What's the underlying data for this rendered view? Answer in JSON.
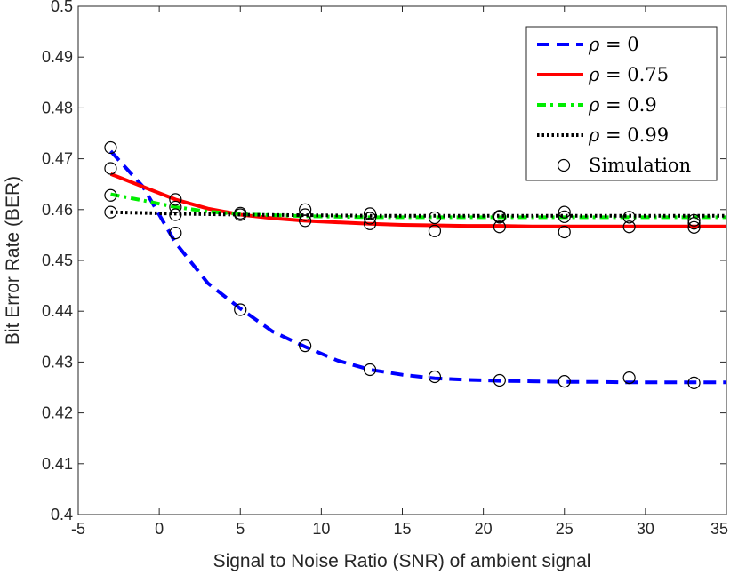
{
  "chart_data": {
    "type": "line",
    "title": "",
    "xlabel": "Signal to Noise Ratio (SNR) of ambient signal",
    "ylabel": "Bit Error Rate (BER)",
    "xlim": [
      -5,
      35
    ],
    "ylim": [
      0.4,
      0.5
    ],
    "xticks": [
      -5,
      0,
      5,
      10,
      15,
      20,
      25,
      30,
      35
    ],
    "xtick_labels": [
      "-5",
      "0",
      "5",
      "10",
      "15",
      "20",
      "25",
      "30",
      "35"
    ],
    "yticks": [
      0.4,
      0.41,
      0.42,
      0.43,
      0.44,
      0.45,
      0.46,
      0.47,
      0.48,
      0.49,
      0.5
    ],
    "ytick_labels": [
      "0.4",
      "0.41",
      "0.42",
      "0.43",
      "0.44",
      "0.45",
      "0.46",
      "0.47",
      "0.48",
      "0.49",
      "0.5"
    ],
    "legend_position": "top-right",
    "series": [
      {
        "name": "ρ = 0",
        "symbol": "ρ",
        "eq": " = 0",
        "color": "#0000ff",
        "style": "dashed",
        "x": [
          -3,
          -1,
          1,
          3,
          5,
          7,
          9,
          11,
          13,
          15,
          17,
          19,
          21,
          23,
          25,
          27,
          29,
          31,
          33,
          35
        ],
        "y": [
          0.4715,
          0.4645,
          0.4535,
          0.4455,
          0.4405,
          0.436,
          0.433,
          0.4303,
          0.4285,
          0.4275,
          0.4268,
          0.4265,
          0.4263,
          0.4262,
          0.4261,
          0.4261,
          0.426,
          0.426,
          0.426,
          0.426
        ]
      },
      {
        "name": "ρ = 0.75",
        "symbol": "ρ",
        "eq": " = 0.75",
        "color": "#ff0000",
        "style": "solid",
        "x": [
          -3,
          -1,
          1,
          3,
          5,
          7,
          9,
          11,
          13,
          15,
          17,
          19,
          21,
          23,
          25,
          27,
          29,
          31,
          33,
          35
        ],
        "y": [
          0.467,
          0.4645,
          0.462,
          0.4602,
          0.459,
          0.4583,
          0.4578,
          0.4575,
          0.4572,
          0.457,
          0.4569,
          0.4568,
          0.4568,
          0.4567,
          0.4567,
          0.4567,
          0.4567,
          0.4567,
          0.4567,
          0.4567
        ]
      },
      {
        "name": "ρ = 0.9",
        "symbol": "ρ",
        "eq": " = 0.9",
        "color": "#00ee00",
        "style": "dashdot",
        "x": [
          -3,
          -1,
          1,
          3,
          5,
          7,
          9,
          11,
          13,
          15,
          17,
          19,
          21,
          23,
          25,
          27,
          29,
          31,
          33,
          35
        ],
        "y": [
          0.463,
          0.4618,
          0.4605,
          0.4596,
          0.4591,
          0.4589,
          0.4587,
          0.4586,
          0.4585,
          0.4585,
          0.4585,
          0.4585,
          0.4585,
          0.4585,
          0.4585,
          0.4585,
          0.4585,
          0.4585,
          0.4585,
          0.4585
        ]
      },
      {
        "name": "ρ = 0.99",
        "symbol": "ρ",
        "eq": " = 0.99",
        "color": "#000000",
        "style": "dotted",
        "x": [
          -3,
          1,
          5,
          9,
          13,
          17,
          21,
          25,
          29,
          33,
          35
        ],
        "y": [
          0.4595,
          0.4592,
          0.459,
          0.4589,
          0.4588,
          0.4588,
          0.4588,
          0.4588,
          0.4588,
          0.4588,
          0.4588
        ]
      },
      {
        "name": "Simulation",
        "symbol": "",
        "eq": "Simulation",
        "color": "#000000",
        "style": "markers",
        "x": [
          -3,
          -3,
          -3,
          -3,
          1,
          1,
          1,
          1,
          5,
          5,
          5,
          9,
          9,
          9,
          9,
          13,
          13,
          13,
          13,
          17,
          17,
          17,
          21,
          21,
          21,
          21,
          25,
          25,
          25,
          25,
          29,
          29,
          29,
          33,
          33,
          33,
          33
        ],
        "y": [
          0.4722,
          0.4681,
          0.4628,
          0.4595,
          0.462,
          0.4605,
          0.459,
          0.4554,
          0.4593,
          0.459,
          0.4403,
          0.46,
          0.459,
          0.4578,
          0.4332,
          0.4592,
          0.4583,
          0.4572,
          0.4285,
          0.4584,
          0.4558,
          0.4271,
          0.4587,
          0.4585,
          0.4566,
          0.4264,
          0.4595,
          0.4586,
          0.4556,
          0.4262,
          0.4585,
          0.4566,
          0.4269,
          0.4579,
          0.4573,
          0.4565,
          0.4259
        ]
      }
    ]
  }
}
